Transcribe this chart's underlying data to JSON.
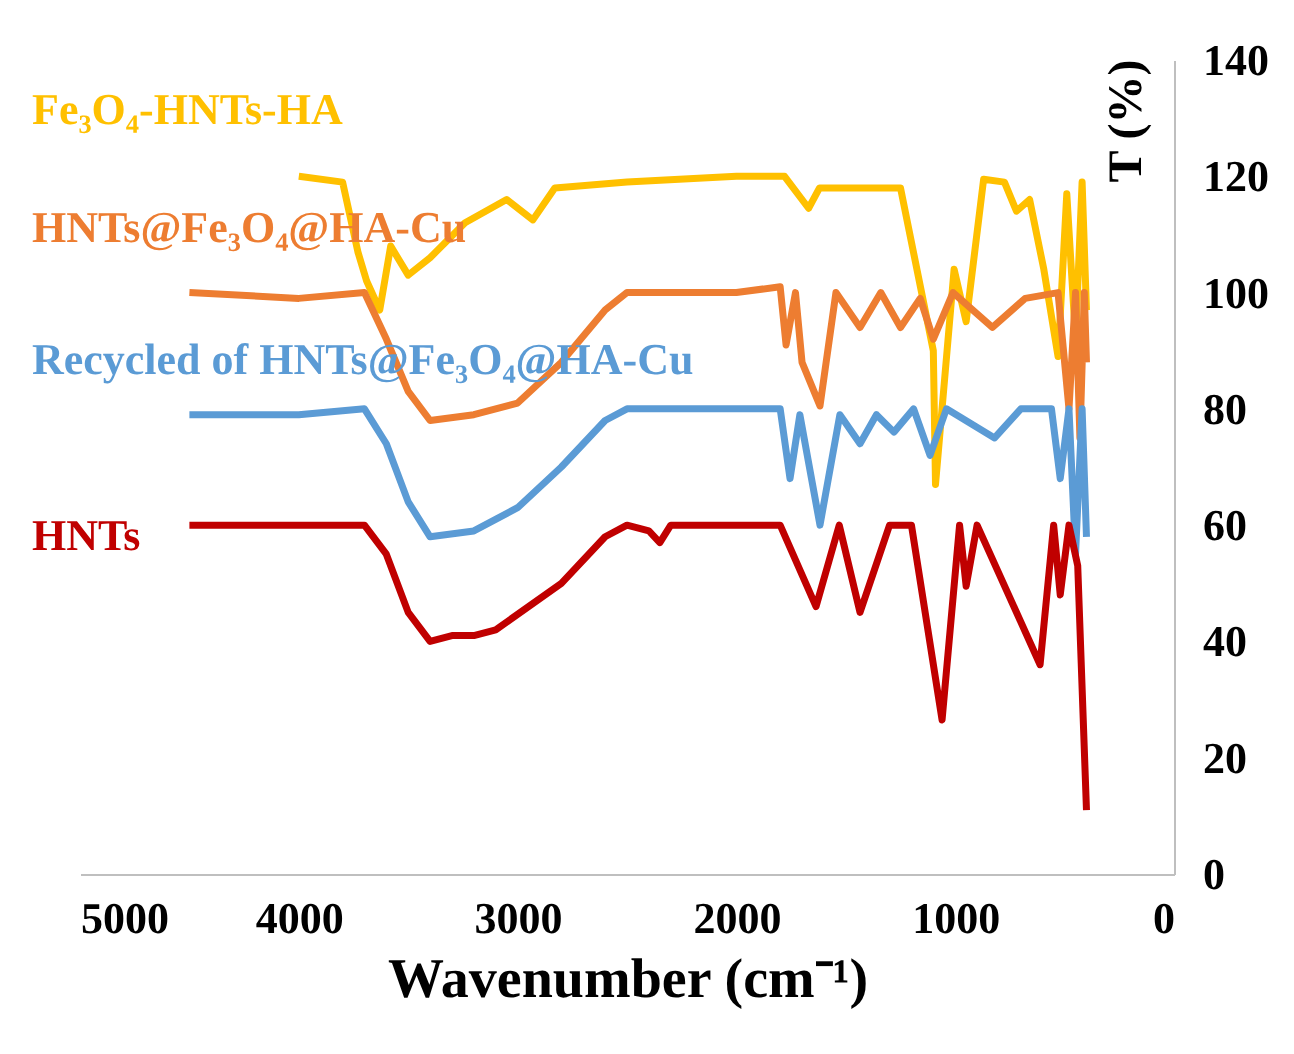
{
  "chart_data": {
    "type": "line",
    "xlabel": "Wavenumber (cm⁻¹)",
    "ylabel": "T (%)",
    "xlim": [
      5000,
      0
    ],
    "xticks": [
      5000,
      4000,
      3000,
      2000,
      1000,
      0
    ],
    "ylim": [
      0,
      140
    ],
    "yticks": [
      0,
      20,
      40,
      60,
      80,
      100,
      120,
      140
    ],
    "grid": false,
    "legend": false,
    "marker": "none",
    "line_style": "solid",
    "series": [
      {
        "name": "Fe₃O₄-HNTs-HA",
        "color": "#ffc000",
        "x": [
          4000,
          3800,
          3730,
          3690,
          3630,
          3580,
          3500,
          3400,
          3240,
          3050,
          2930,
          2830,
          2500,
          2000,
          1780,
          1670,
          1620,
          1250,
          1100,
          1090,
          1005,
          950,
          870,
          775,
          720,
          660,
          595,
          530,
          490,
          450,
          420,
          400
        ],
        "values": [
          120,
          119,
          107,
          102,
          97,
          108,
          103,
          106,
          112,
          116,
          112.5,
          118,
          119,
          120,
          120,
          114.5,
          118,
          118,
          90,
          67,
          104,
          95,
          119.5,
          119,
          114,
          116,
          104,
          89,
          117,
          92,
          119,
          97
        ]
      },
      {
        "name": "HNTs@Fe₃O₄@HA-Cu",
        "color": "#ed7d31",
        "x": [
          4500,
          4000,
          3700,
          3600,
          3500,
          3400,
          3200,
          3000,
          2800,
          2600,
          2500,
          2000,
          1800,
          1773,
          1730,
          1700,
          1618,
          1545,
          1435,
          1340,
          1250,
          1160,
          1100,
          1010,
          830,
          680,
          530,
          480,
          450,
          430,
          410,
          400
        ],
        "values": [
          100,
          99,
          100,
          92,
          83,
          78,
          79,
          81,
          88,
          97,
          100,
          100,
          101,
          91,
          100,
          88,
          80.5,
          100,
          94,
          100,
          94,
          99,
          92,
          100,
          94,
          99,
          100,
          80,
          100,
          75,
          100,
          88
        ]
      },
      {
        "name": "Recycled of HNTs@Fe₃O₄@HA-Cu",
        "color": "#5b9bd5",
        "x": [
          4500,
          4000,
          3700,
          3600,
          3500,
          3400,
          3200,
          3000,
          2800,
          2600,
          2500,
          2000,
          1800,
          1755,
          1710,
          1618,
          1527,
          1435,
          1360,
          1280,
          1190,
          1115,
          1040,
          820,
          700,
          560,
          520,
          480,
          450,
          420,
          400
        ],
        "values": [
          79,
          79,
          80,
          74,
          64,
          58,
          59,
          63,
          70,
          78,
          80,
          80,
          80,
          68,
          79,
          60,
          79,
          74,
          79,
          76,
          80,
          72,
          80,
          75,
          80,
          80,
          68,
          80,
          55,
          80,
          58
        ]
      },
      {
        "name": "HNTs",
        "color": "#c00000",
        "x": [
          4500,
          4000,
          3700,
          3600,
          3500,
          3400,
          3300,
          3200,
          3100,
          2800,
          2600,
          2500,
          2400,
          2350,
          2300,
          1800,
          1636,
          1530,
          1435,
          1300,
          1200,
          1060,
          980,
          950,
          900,
          612,
          550,
          520,
          480,
          440,
          400
        ],
        "values": [
          60,
          60,
          60,
          55,
          45,
          40,
          41,
          41,
          42,
          50,
          58,
          60,
          59,
          57,
          60,
          60,
          46,
          60,
          45,
          60,
          60,
          26.5,
          60,
          49.5,
          60,
          36,
          60,
          48,
          60,
          53,
          11
        ]
      }
    ]
  }
}
